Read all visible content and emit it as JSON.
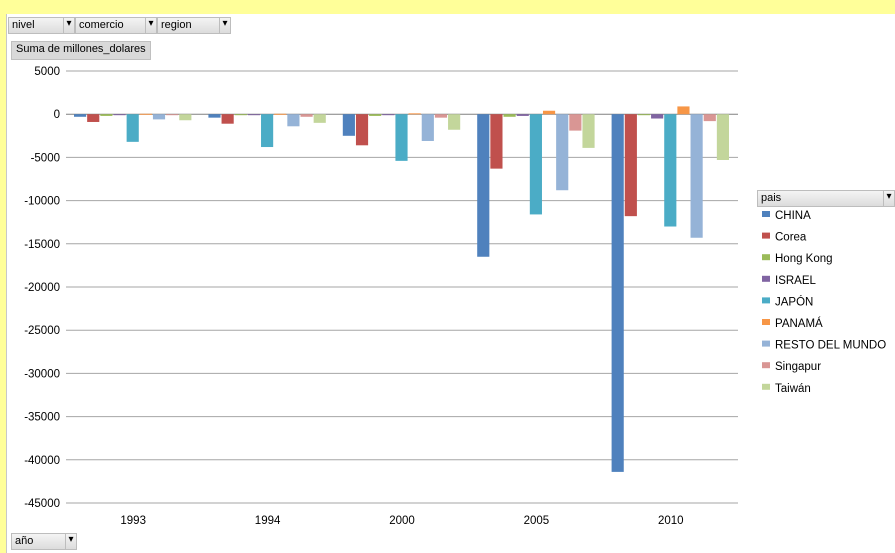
{
  "filters": {
    "nivel": "nivel",
    "comercio": "comercio",
    "region": "region",
    "anio": "año",
    "pais": "pais"
  },
  "value_field_label": "Suma de millones_dolares",
  "colors": {
    "page_background": "#ffff99",
    "gridline": "#a6a6a6",
    "zero_axis": "#808080"
  },
  "chart_data": {
    "type": "bar",
    "categories": [
      "1993",
      "1994",
      "2000",
      "2005",
      "2010"
    ],
    "ylim": [
      -45000,
      5000
    ],
    "ytick_step": 5000,
    "grid": true,
    "legend_position": "right",
    "legend_title": "pais",
    "series": [
      {
        "name": "CHINA",
        "color": "#4f81bd",
        "values": [
          -300,
          -400,
          -2500,
          -16500,
          -41400
        ]
      },
      {
        "name": "Corea",
        "color": "#c0504d",
        "values": [
          -900,
          -1100,
          -3600,
          -6300,
          -11800
        ]
      },
      {
        "name": "Hong Kong",
        "color": "#9bbb59",
        "values": [
          -200,
          -100,
          -200,
          -300,
          -100
        ]
      },
      {
        "name": "ISRAEL",
        "color": "#8064a2",
        "values": [
          -100,
          -50,
          -100,
          -200,
          -500
        ]
      },
      {
        "name": "JAPÓN",
        "color": "#4bacc6",
        "values": [
          -3200,
          -3800,
          -5400,
          -11600,
          -13000
        ]
      },
      {
        "name": "PANAMÁ",
        "color": "#f79646",
        "values": [
          50,
          50,
          100,
          400,
          900
        ]
      },
      {
        "name": "RESTO DEL MUNDO",
        "color": "#95b3d7",
        "values": [
          -600,
          -1400,
          -3100,
          -8800,
          -14300
        ]
      },
      {
        "name": "Singapur",
        "color": "#d99694",
        "values": [
          -100,
          -300,
          -400,
          -1900,
          -800
        ]
      },
      {
        "name": "Taiwán",
        "color": "#c3d69b",
        "values": [
          -700,
          -1000,
          -1800,
          -3900,
          -5300
        ]
      }
    ]
  }
}
